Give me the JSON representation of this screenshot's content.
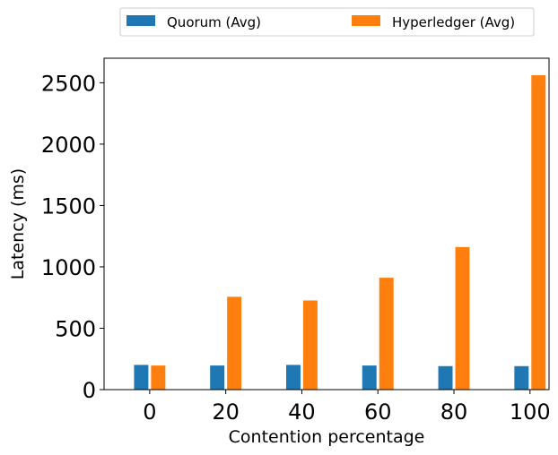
{
  "chart_data": {
    "type": "bar",
    "title": "",
    "xlabel": "Contention percentage",
    "ylabel": "Latency (ms)",
    "categories": [
      "0",
      "20",
      "40",
      "60",
      "80",
      "100"
    ],
    "x": [
      0,
      20,
      40,
      60,
      80,
      100
    ],
    "xlim": [
      -12,
      105
    ],
    "ylim": [
      0,
      2700
    ],
    "yticks": [
      0,
      500,
      1000,
      1500,
      2000,
      2500
    ],
    "grid": false,
    "legend_position": "top-center, above plot",
    "series": [
      {
        "name": "Quorum (Avg)",
        "color": "#1f77b4",
        "values": [
          205,
          200,
          205,
          200,
          195,
          195
        ]
      },
      {
        "name": "Hyperledger (Avg)",
        "color": "#ff7f0e",
        "values": [
          200,
          760,
          730,
          915,
          1165,
          2565
        ]
      }
    ]
  }
}
